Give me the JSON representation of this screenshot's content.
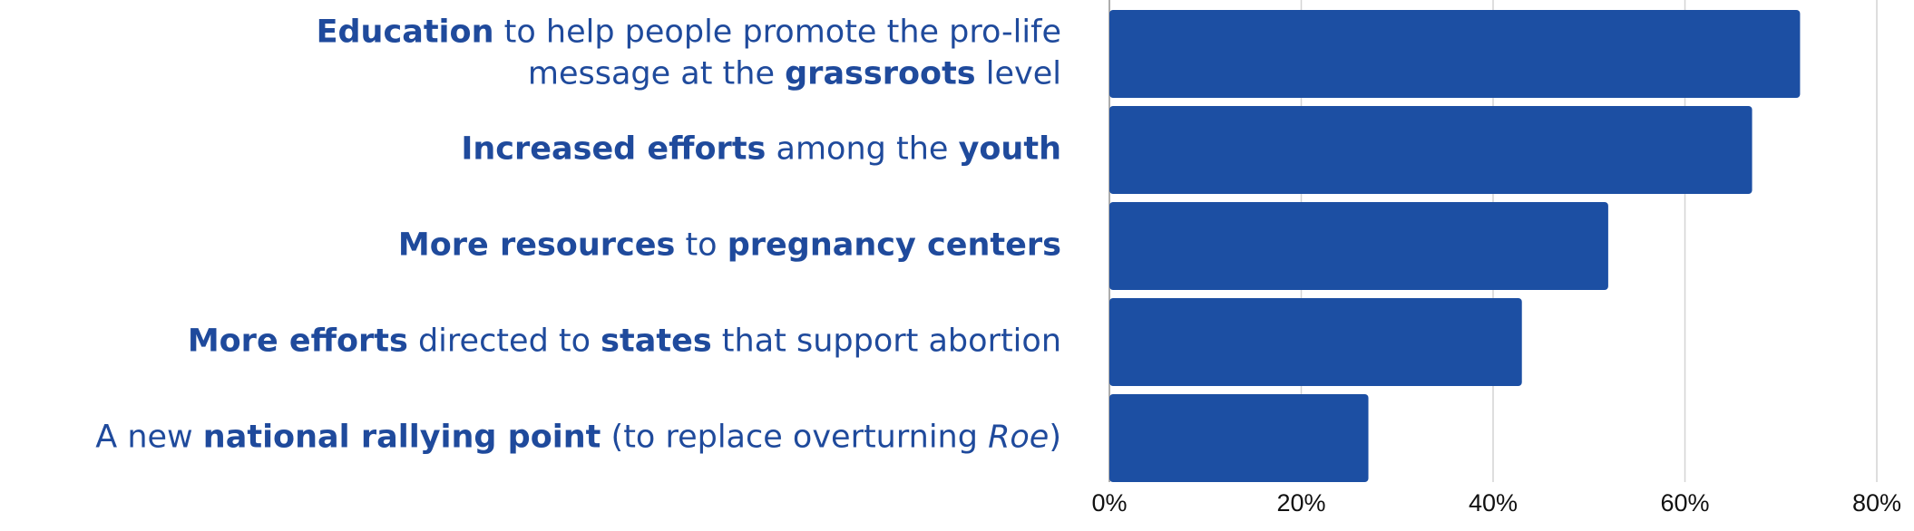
{
  "chart_data": {
    "type": "barh",
    "categories": [
      [
        [
          {
            "text": "Education",
            "bold": true
          },
          {
            "text": " to help people promote the pro-life"
          }
        ],
        [
          {
            "text": "message at the "
          },
          {
            "text": "grassroots",
            "bold": true
          },
          {
            "text": " level"
          }
        ]
      ],
      [
        [
          {
            "text": "Increased efforts",
            "bold": true
          },
          {
            "text": " among the "
          },
          {
            "text": "youth",
            "bold": true
          }
        ]
      ],
      [
        [
          {
            "text": "More resources",
            "bold": true
          },
          {
            "text": " to "
          },
          {
            "text": "pregnancy centers",
            "bold": true
          }
        ]
      ],
      [
        [
          {
            "text": "More efforts",
            "bold": true
          },
          {
            "text": " directed to "
          },
          {
            "text": "states",
            "bold": true
          },
          {
            "text": " that support abortion"
          }
        ]
      ],
      [
        [
          {
            "text": "A new "
          },
          {
            "text": "national rallying point",
            "bold": true
          },
          {
            "text": " (to replace overturning "
          },
          {
            "text": "Roe",
            "italic": true
          },
          {
            "text": ")"
          }
        ]
      ]
    ],
    "values": [
      72,
      67,
      52,
      43,
      27
    ],
    "color": "#1c4fa3",
    "xlim": [
      0,
      80
    ],
    "xticks": [
      {
        "value": 0,
        "label": "0%"
      },
      {
        "value": 20,
        "label": "20%"
      },
      {
        "value": 40,
        "label": "40%"
      },
      {
        "value": 60,
        "label": "60%"
      },
      {
        "value": 80,
        "label": "80%"
      }
    ],
    "grid": true
  }
}
